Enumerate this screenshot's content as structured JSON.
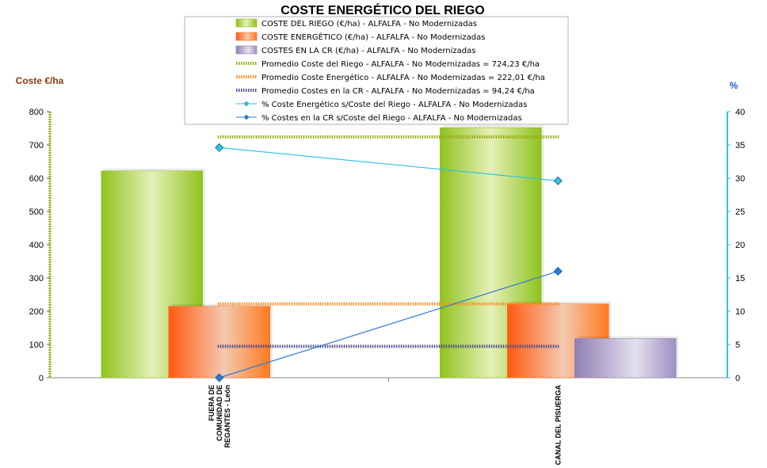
{
  "chart_data": {
    "type": "bar",
    "title": "COSTE ENERGÉTICO DEL RIEGO",
    "ylabel_left": "Coste €/ha",
    "ylabel_right": "%",
    "ylim_left": [
      0,
      800
    ],
    "yticks_left": [
      0,
      100,
      200,
      300,
      400,
      500,
      600,
      700,
      800
    ],
    "ylim_right": [
      0,
      40
    ],
    "yticks_right": [
      0,
      5,
      10,
      15,
      20,
      25,
      30,
      35,
      40
    ],
    "categories": [
      [
        "FUERA DE",
        "COMUNIDAD DE",
        "REGANTES - León"
      ],
      [
        "CANAL DEL PISUERGA"
      ]
    ],
    "series": [
      {
        "name": "COSTE DEL RIEGO (€/ha) - ALFALFA - No Modernizadas",
        "type": "bar",
        "axis": "left",
        "color": "#8fc21e",
        "values": [
          622,
          752
        ]
      },
      {
        "name": "COSTE ENERGÉTICO (€/ha) - ALFALFA - No Modernizadas",
        "type": "bar",
        "axis": "left",
        "color": "#ff6a1a",
        "values": [
          215,
          222
        ]
      },
      {
        "name": "COSTES EN LA CR (€/ha) - ALFALFA - No Modernizadas",
        "type": "bar",
        "axis": "left",
        "color": "#8f7fb5",
        "values": [
          0,
          118
        ]
      },
      {
        "name": "Promedio Coste del Riego - ALFALFA - No Modernizadas = 724,23 €/ha",
        "type": "hline",
        "axis": "left",
        "color": "#9aa80a",
        "value": 724.23
      },
      {
        "name": "Promedio Coste Energético - ALFALFA - No Modernizadas = 222,01 €/ha",
        "type": "hline",
        "axis": "left",
        "color": "#ff8a1a",
        "value": 222.01
      },
      {
        "name": "Promedio Costes en la CR - ALFALFA - No Modernizadas = 94,24 €/ha",
        "type": "hline",
        "axis": "left",
        "color": "#4a4a8a",
        "value": 94.24
      },
      {
        "name": "% Coste Energético s/Coste del Riego - ALFALFA - No Modernizadas",
        "type": "line",
        "axis": "right",
        "color": "#2fc3e0",
        "values": [
          34.6,
          29.6
        ]
      },
      {
        "name": "% Costes en la CR s/Coste del Riego - ALFALFA - No Modernizadas",
        "type": "line",
        "axis": "right",
        "color": "#2d7ad6",
        "values": [
          0,
          16
        ]
      }
    ]
  }
}
